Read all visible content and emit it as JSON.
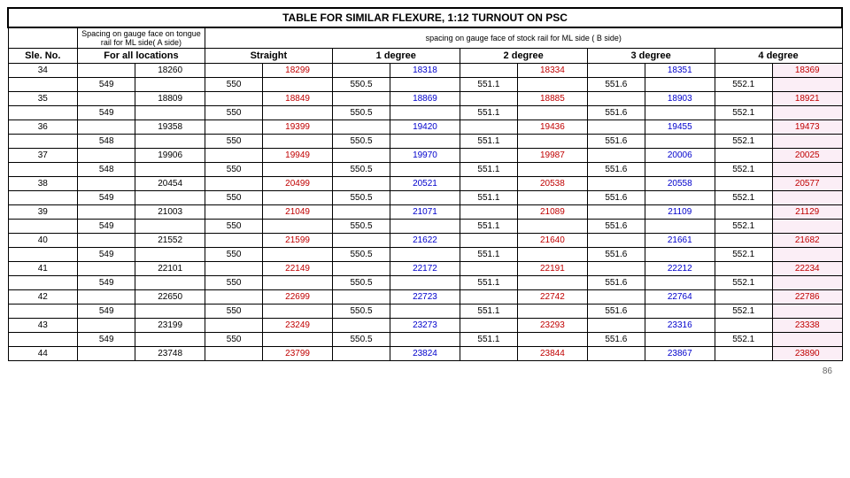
{
  "title": "TABLE FOR SIMILAR FLEXURE, 1:12 TURNOUT ON PSC",
  "header_a": "Spacing on gauge face on tongue rail for ML side( A side)",
  "header_b": "spacing on gauge face of stock rail for ML side ( B side)",
  "col_sle": "Sle. No.",
  "col_all": "For all locations",
  "col_straight": "Straight",
  "col_1deg": "1 degree",
  "col_2deg": "2 degree",
  "col_3deg": "3 degree",
  "col_4deg": "4 degree",
  "page_number": "86",
  "rows": [
    {
      "sle": "34",
      "a": "549",
      "all": "18260",
      "s1": "550",
      "s2": "18299",
      "d1a": "550.5",
      "d1b": "18318",
      "d2a": "551.1",
      "d2b": "18334",
      "d3a": "551.6",
      "d3b": "18351",
      "d4a": "552.1",
      "d4b": "18369"
    },
    {
      "sle": "35",
      "a": "549",
      "all": "18809",
      "s1": "550",
      "s2": "18849",
      "d1a": "550.5",
      "d1b": "18869",
      "d2a": "551.1",
      "d2b": "18885",
      "d3a": "551.6",
      "d3b": "18903",
      "d4a": "552.1",
      "d4b": "18921"
    },
    {
      "sle": "36",
      "a": "548",
      "all": "19358",
      "s1": "550",
      "s2": "19399",
      "d1a": "550.5",
      "d1b": "19420",
      "d2a": "551.1",
      "d2b": "19436",
      "d3a": "551.6",
      "d3b": "19455",
      "d4a": "552.1",
      "d4b": "19473"
    },
    {
      "sle": "37",
      "a": "548",
      "all": "19906",
      "s1": "550",
      "s2": "19949",
      "d1a": "550.5",
      "d1b": "19970",
      "d2a": "551.1",
      "d2b": "19987",
      "d3a": "551.6",
      "d3b": "20006",
      "d4a": "552.1",
      "d4b": "20025"
    },
    {
      "sle": "38",
      "a": "549",
      "all": "20454",
      "s1": "550",
      "s2": "20499",
      "d1a": "550.5",
      "d1b": "20521",
      "d2a": "551.1",
      "d2b": "20538",
      "d3a": "551.6",
      "d3b": "20558",
      "d4a": "552.1",
      "d4b": "20577"
    },
    {
      "sle": "39",
      "a": "549",
      "all": "21003",
      "s1": "550",
      "s2": "21049",
      "d1a": "550.5",
      "d1b": "21071",
      "d2a": "551.1",
      "d2b": "21089",
      "d3a": "551.6",
      "d3b": "21109",
      "d4a": "552.1",
      "d4b": "21129"
    },
    {
      "sle": "40",
      "a": "549",
      "all": "21552",
      "s1": "550",
      "s2": "21599",
      "d1a": "550.5",
      "d1b": "21622",
      "d2a": "551.1",
      "d2b": "21640",
      "d3a": "551.6",
      "d3b": "21661",
      "d4a": "552.1",
      "d4b": "21682"
    },
    {
      "sle": "41",
      "a": "549",
      "all": "22101",
      "s1": "550",
      "s2": "22149",
      "d1a": "550.5",
      "d1b": "22172",
      "d2a": "551.1",
      "d2b": "22191",
      "d3a": "551.6",
      "d3b": "22212",
      "d4a": "552.1",
      "d4b": "22234"
    },
    {
      "sle": "42",
      "a": "549",
      "all": "22650",
      "s1": "550",
      "s2": "22699",
      "d1a": "550.5",
      "d1b": "22723",
      "d2a": "551.1",
      "d2b": "22742",
      "d3a": "551.6",
      "d3b": "22764",
      "d4a": "552.1",
      "d4b": "22786"
    },
    {
      "sle": "43",
      "a": "549",
      "all": "23199",
      "s1": "550",
      "s2": "23249",
      "d1a": "550.5",
      "d1b": "23273",
      "d2a": "551.1",
      "d2b": "23293",
      "d3a": "551.6",
      "d3b": "23316",
      "d4a": "552.1",
      "d4b": "23338"
    },
    {
      "sle": "44",
      "a": "",
      "all": "23748",
      "s1": "",
      "s2": "23799",
      "d1a": "",
      "d1b": "23824",
      "d2a": "",
      "d2b": "23844",
      "d3a": "",
      "d3b": "23867",
      "d4a": "",
      "d4b": "23890"
    }
  ]
}
